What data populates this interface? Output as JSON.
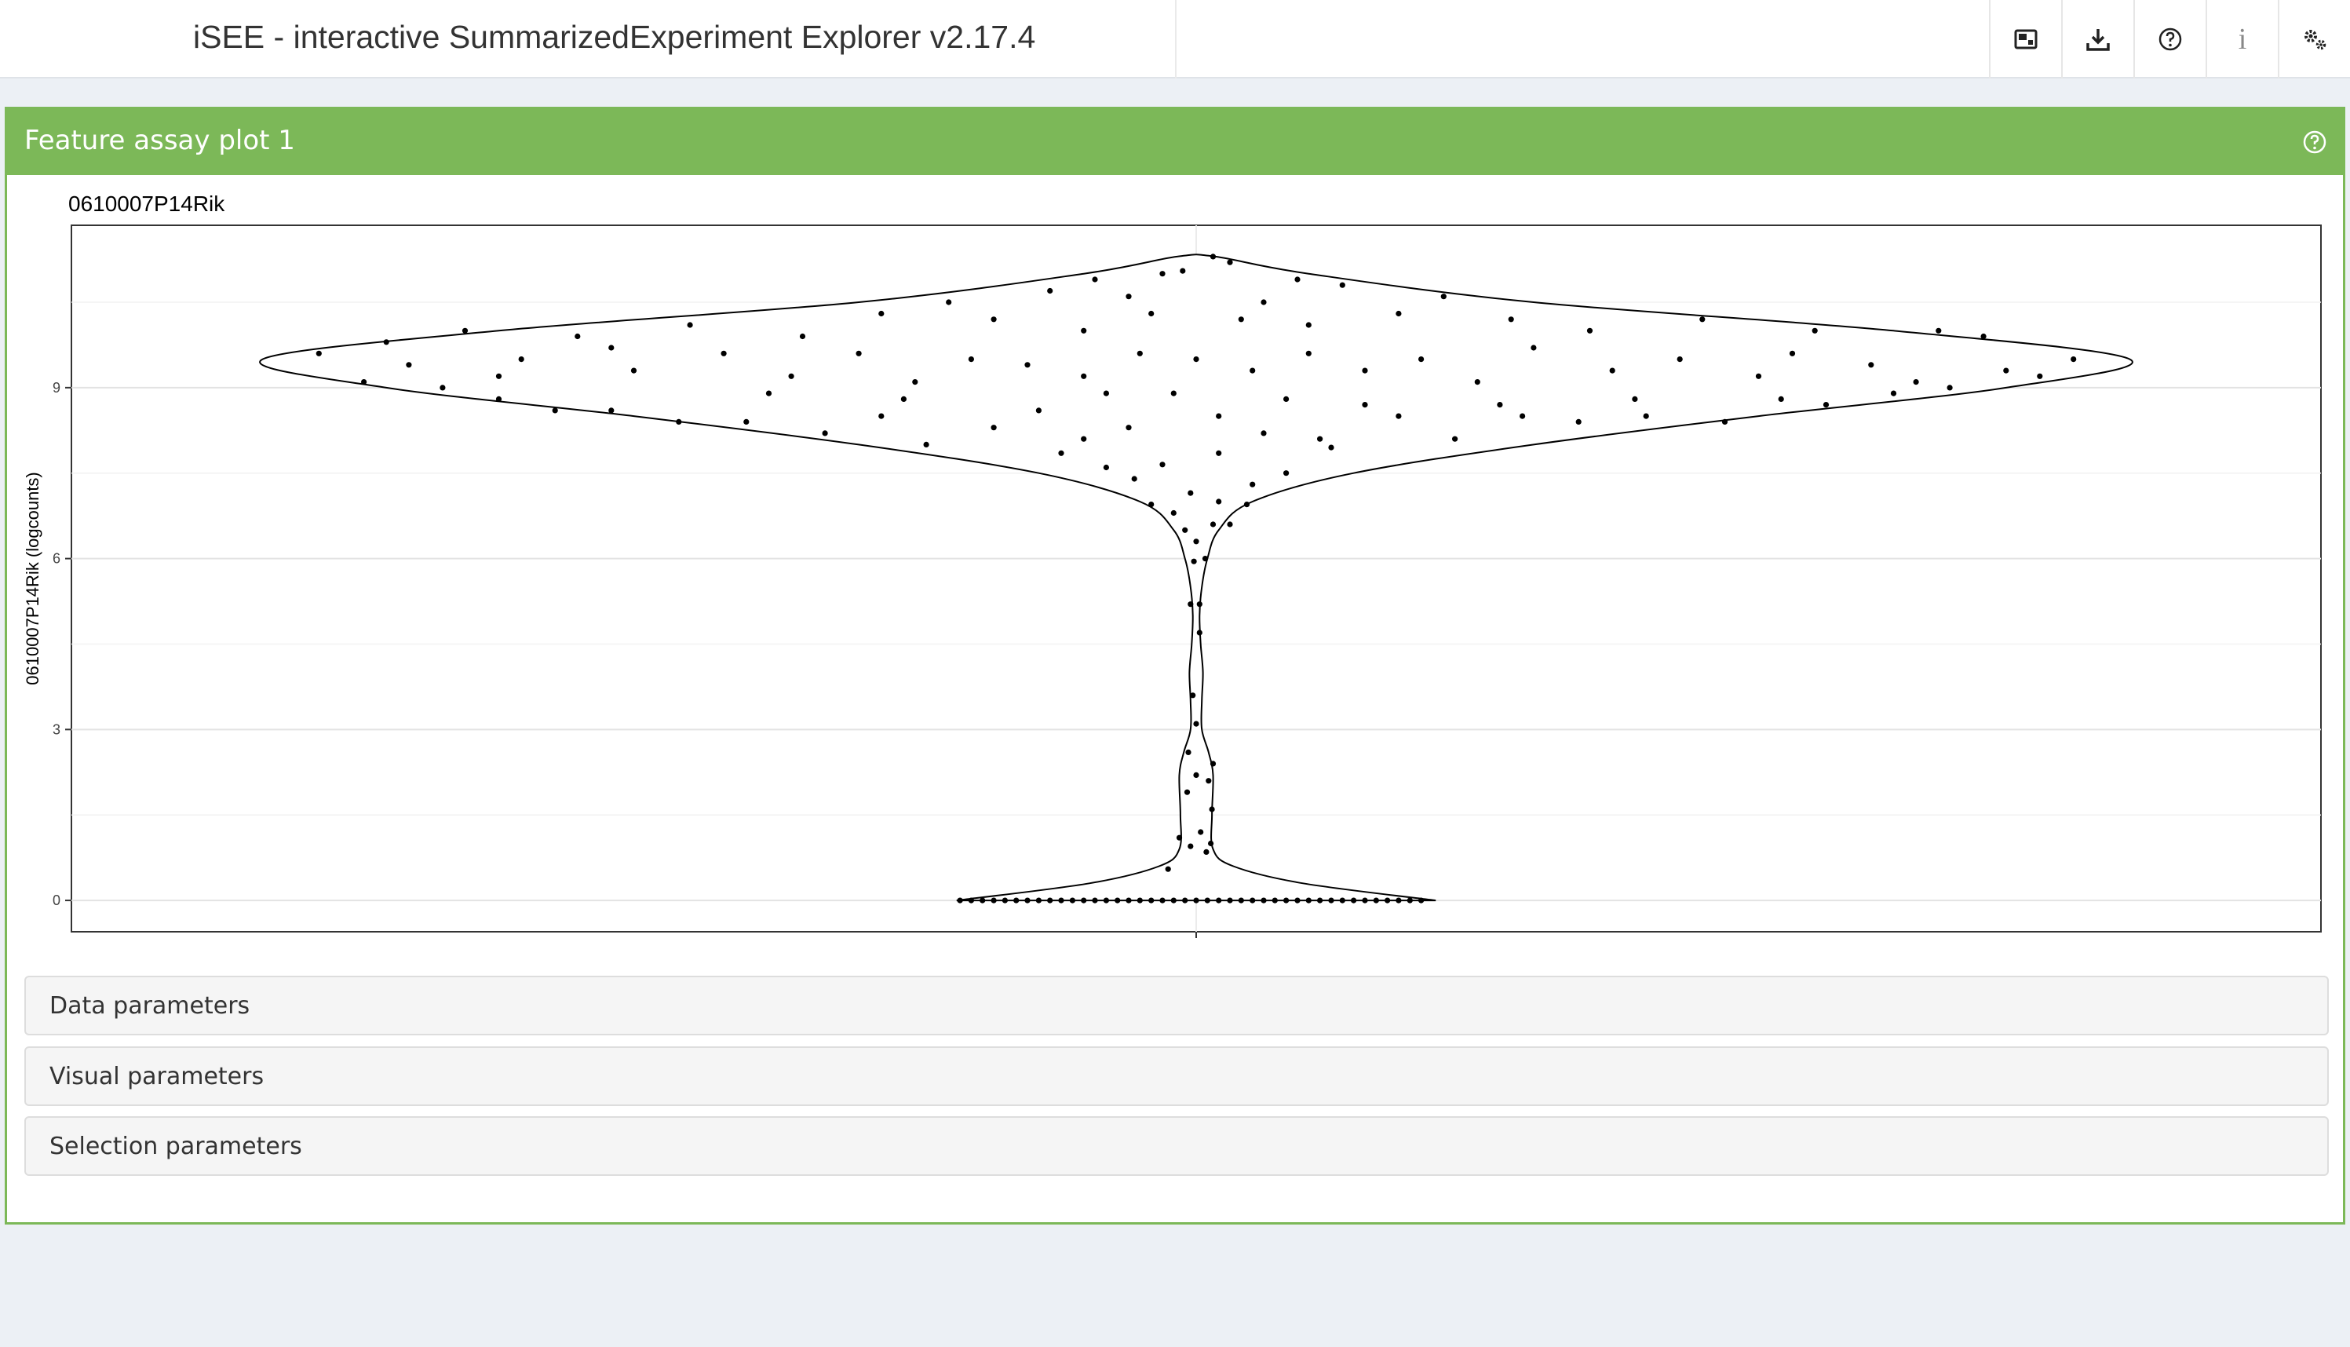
{
  "app": {
    "title": "iSEE - interactive SummarizedExperiment Explorer v2.17.4"
  },
  "header": {
    "buttons": [
      {
        "name": "organize-panels-icon"
      },
      {
        "name": "download-icon"
      },
      {
        "name": "help-icon"
      },
      {
        "name": "info-icon",
        "glyph": "i"
      },
      {
        "name": "settings-icon"
      }
    ]
  },
  "panel": {
    "title": "Feature assay plot 1",
    "accent_color": "#7cb858",
    "sections": [
      {
        "label": "Data parameters"
      },
      {
        "label": "Visual parameters"
      },
      {
        "label": "Selection parameters"
      }
    ]
  },
  "chart_data": {
    "type": "violin",
    "title": "0610007P14Rik",
    "ylabel": "0610007P14Rik (logcounts)",
    "xlabel": "",
    "yticks": [
      "0",
      "3",
      "6",
      "9"
    ],
    "ylim": [
      -0.55,
      11.85
    ],
    "grid": true,
    "violin": {
      "y": [
        0.0,
        0.3,
        0.6,
        0.9,
        1.5,
        2.2,
        2.6,
        3.0,
        3.5,
        4.0,
        4.5,
        5.0,
        5.5,
        6.0,
        6.5,
        7.0,
        7.5,
        8.0,
        8.5,
        9.0,
        9.5,
        10.0,
        10.5,
        11.0,
        11.3
      ],
      "width": [
        0.213,
        0.095,
        0.033,
        0.015,
        0.014,
        0.015,
        0.011,
        0.005,
        0.005,
        0.006,
        0.004,
        0.003,
        0.005,
        0.01,
        0.02,
        0.05,
        0.14,
        0.3,
        0.5,
        0.72,
        0.83,
        0.62,
        0.3,
        0.1,
        0.017
      ]
    },
    "points": [
      [
        -0.21,
        0
      ],
      [
        -0.2,
        0
      ],
      [
        -0.19,
        0
      ],
      [
        -0.18,
        0
      ],
      [
        -0.17,
        0
      ],
      [
        -0.16,
        0
      ],
      [
        -0.15,
        0
      ],
      [
        -0.14,
        0
      ],
      [
        -0.13,
        0
      ],
      [
        -0.12,
        0
      ],
      [
        -0.11,
        0
      ],
      [
        -0.1,
        0
      ],
      [
        -0.09,
        0
      ],
      [
        -0.08,
        0
      ],
      [
        -0.07,
        0
      ],
      [
        -0.06,
        0
      ],
      [
        -0.05,
        0
      ],
      [
        -0.04,
        0
      ],
      [
        -0.03,
        0
      ],
      [
        -0.02,
        0
      ],
      [
        -0.01,
        0
      ],
      [
        0.0,
        0
      ],
      [
        0.01,
        0
      ],
      [
        0.02,
        0
      ],
      [
        0.03,
        0
      ],
      [
        0.04,
        0
      ],
      [
        0.05,
        0
      ],
      [
        0.06,
        0
      ],
      [
        0.07,
        0
      ],
      [
        0.08,
        0
      ],
      [
        0.09,
        0
      ],
      [
        0.1,
        0
      ],
      [
        0.11,
        0
      ],
      [
        0.12,
        0
      ],
      [
        0.13,
        0
      ],
      [
        0.14,
        0
      ],
      [
        0.15,
        0
      ],
      [
        0.16,
        0
      ],
      [
        0.17,
        0
      ],
      [
        0.18,
        0
      ],
      [
        0.19,
        0
      ],
      [
        0.2,
        0
      ],
      [
        -0.025,
        0.55
      ],
      [
        -0.015,
        1.1
      ],
      [
        0.004,
        1.2
      ],
      [
        -0.005,
        0.95
      ],
      [
        0.013,
        1.0
      ],
      [
        0.009,
        0.85
      ],
      [
        0.014,
        1.6
      ],
      [
        -0.008,
        1.9
      ],
      [
        0.0,
        2.2
      ],
      [
        0.011,
        2.1
      ],
      [
        -0.007,
        2.6
      ],
      [
        0.015,
        2.4
      ],
      [
        0.0,
        3.1
      ],
      [
        -0.003,
        3.6
      ],
      [
        0.003,
        4.7
      ],
      [
        -0.005,
        5.2
      ],
      [
        0.003,
        5.2
      ],
      [
        -0.002,
        5.95
      ],
      [
        0.008,
        6.0
      ],
      [
        0.0,
        6.3
      ],
      [
        -0.01,
        6.5
      ],
      [
        0.015,
        6.6
      ],
      [
        -0.02,
        6.8
      ],
      [
        0.03,
        6.6
      ],
      [
        -0.04,
        6.95
      ],
      [
        0.045,
        6.95
      ],
      [
        0.02,
        7.0
      ],
      [
        -0.005,
        7.15
      ],
      [
        -0.055,
        7.4
      ],
      [
        0.05,
        7.3
      ],
      [
        -0.08,
        7.6
      ],
      [
        0.08,
        7.5
      ],
      [
        -0.03,
        7.65
      ],
      [
        0.02,
        7.85
      ],
      [
        -0.1,
        8.1
      ],
      [
        0.11,
        8.1
      ],
      [
        -0.12,
        7.85
      ],
      [
        0.12,
        7.95
      ],
      [
        0.06,
        8.2
      ],
      [
        -0.06,
        8.3
      ],
      [
        -0.18,
        8.3
      ],
      [
        0.18,
        8.5
      ],
      [
        -0.24,
        8.0
      ],
      [
        0.23,
        8.1
      ],
      [
        -0.28,
        8.5
      ],
      [
        0.29,
        8.5
      ],
      [
        -0.33,
        8.2
      ],
      [
        0.34,
        8.4
      ],
      [
        -0.4,
        8.4
      ],
      [
        0.4,
        8.5
      ],
      [
        -0.46,
        8.4
      ],
      [
        0.47,
        8.4
      ],
      [
        -0.52,
        8.6
      ],
      [
        0.52,
        8.8
      ],
      [
        -0.57,
        8.6
      ],
      [
        0.56,
        8.7
      ],
      [
        -0.62,
        8.8
      ],
      [
        0.62,
        8.9
      ],
      [
        -0.67,
        9.0
      ],
      [
        0.67,
        9.0
      ],
      [
        -0.7,
        9.4
      ],
      [
        0.72,
        9.3
      ],
      [
        -0.78,
        9.6
      ],
      [
        0.78,
        9.5
      ],
      [
        -0.74,
        9.1
      ],
      [
        0.75,
        9.2
      ],
      [
        -0.6,
        9.5
      ],
      [
        0.6,
        9.4
      ],
      [
        -0.5,
        9.3
      ],
      [
        0.5,
        9.2
      ],
      [
        -0.42,
        9.6
      ],
      [
        0.43,
        9.5
      ],
      [
        -0.36,
        9.2
      ],
      [
        0.37,
        9.3
      ],
      [
        -0.3,
        9.6
      ],
      [
        0.3,
        9.7
      ],
      [
        -0.25,
        9.1
      ],
      [
        0.25,
        9.1
      ],
      [
        -0.2,
        9.5
      ],
      [
        0.2,
        9.5
      ],
      [
        -0.15,
        9.4
      ],
      [
        0.15,
        9.3
      ],
      [
        -0.1,
        9.2
      ],
      [
        0.1,
        9.6
      ],
      [
        -0.05,
        9.6
      ],
      [
        0.05,
        9.3
      ],
      [
        0.0,
        9.5
      ],
      [
        -0.72,
        9.8
      ],
      [
        0.7,
        9.9
      ],
      [
        -0.65,
        10.0
      ],
      [
        0.66,
        10.0
      ],
      [
        -0.55,
        9.9
      ],
      [
        0.55,
        10.0
      ],
      [
        -0.45,
        10.1
      ],
      [
        0.45,
        10.2
      ],
      [
        -0.35,
        9.9
      ],
      [
        0.35,
        10.0
      ],
      [
        -0.28,
        10.3
      ],
      [
        0.28,
        10.2
      ],
      [
        -0.18,
        10.2
      ],
      [
        0.18,
        10.3
      ],
      [
        -0.1,
        10.0
      ],
      [
        0.1,
        10.1
      ],
      [
        -0.04,
        10.3
      ],
      [
        0.04,
        10.2
      ],
      [
        -0.22,
        10.5
      ],
      [
        0.22,
        10.6
      ],
      [
        -0.13,
        10.7
      ],
      [
        0.13,
        10.8
      ],
      [
        -0.06,
        10.6
      ],
      [
        0.06,
        10.5
      ],
      [
        -0.03,
        11.0
      ],
      [
        0.03,
        11.2
      ],
      [
        0.015,
        11.3
      ],
      [
        -0.012,
        11.05
      ],
      [
        0.09,
        10.9
      ],
      [
        -0.09,
        10.9
      ],
      [
        -0.62,
        9.2
      ],
      [
        0.64,
        9.1
      ],
      [
        -0.52,
        9.7
      ],
      [
        0.53,
        9.6
      ],
      [
        -0.38,
        8.9
      ],
      [
        0.39,
        8.8
      ],
      [
        -0.26,
        8.8
      ],
      [
        0.27,
        8.7
      ],
      [
        -0.14,
        8.6
      ],
      [
        0.15,
        8.7
      ],
      [
        -0.02,
        8.9
      ],
      [
        0.02,
        8.5
      ],
      [
        -0.08,
        8.9
      ],
      [
        0.08,
        8.8
      ]
    ]
  }
}
